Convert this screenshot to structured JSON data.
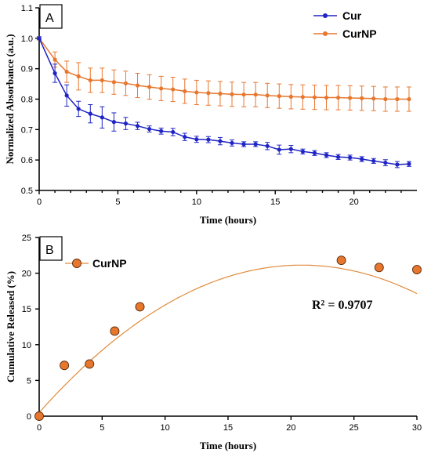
{
  "colors": {
    "cur": "#1f24c4",
    "curnp": "#e8772e",
    "fit": "#e08a3c",
    "axis": "#000000"
  },
  "chart_data": [
    {
      "panel": "A",
      "type": "line",
      "xlabel": "Time (hours)",
      "ylabel": "Normalized Absorbance (a.u.)",
      "xlim": [
        0,
        24
      ],
      "ylim": [
        0.5,
        1.1
      ],
      "xticks": [
        0,
        5,
        10,
        15,
        20
      ],
      "yticks": [
        0.5,
        0.6,
        0.7,
        0.8,
        0.9,
        1.0,
        1.1
      ],
      "xtick_labels": [
        "0",
        "5",
        "10",
        "15",
        "20"
      ],
      "ytick_labels": [
        "0.5",
        "0.6",
        "0.7",
        "0.8",
        "0.9",
        "1.0",
        "1.1"
      ],
      "legend_position": "top-right",
      "series": [
        {
          "name": "Cur",
          "color": "#1f24c4",
          "x": [
            0,
            1,
            1.75,
            2.5,
            3.25,
            4,
            4.75,
            5.5,
            6.25,
            7,
            7.75,
            8.5,
            9.25,
            10,
            10.75,
            11.5,
            12.25,
            13,
            13.75,
            14.5,
            15.25,
            16,
            16.75,
            17.5,
            18.25,
            19,
            19.75,
            20.5,
            21.25,
            22,
            22.75,
            23.5
          ],
          "y": [
            1.0,
            0.885,
            0.812,
            0.768,
            0.752,
            0.74,
            0.725,
            0.72,
            0.712,
            0.702,
            0.695,
            0.692,
            0.676,
            0.668,
            0.667,
            0.662,
            0.656,
            0.652,
            0.652,
            0.646,
            0.634,
            0.636,
            0.628,
            0.623,
            0.616,
            0.61,
            0.608,
            0.603,
            0.597,
            0.591,
            0.585,
            0.587
          ],
          "err": [
            0.005,
            0.03,
            0.035,
            0.025,
            0.03,
            0.035,
            0.03,
            0.02,
            0.012,
            0.01,
            0.01,
            0.012,
            0.012,
            0.01,
            0.01,
            0.012,
            0.01,
            0.008,
            0.008,
            0.012,
            0.015,
            0.012,
            0.008,
            0.008,
            0.008,
            0.008,
            0.008,
            0.008,
            0.008,
            0.01,
            0.01,
            0.008
          ]
        },
        {
          "name": "CurNP",
          "color": "#e8772e",
          "x": [
            0,
            1,
            1.75,
            2.5,
            3.25,
            4,
            4.75,
            5.5,
            6.25,
            7,
            7.75,
            8.5,
            9.25,
            10,
            10.75,
            11.5,
            12.25,
            13,
            13.75,
            14.5,
            15.25,
            16,
            16.75,
            17.5,
            18.25,
            19,
            19.75,
            20.5,
            21.25,
            22,
            22.75,
            23.5
          ],
          "y": [
            1.0,
            0.93,
            0.89,
            0.875,
            0.862,
            0.862,
            0.856,
            0.852,
            0.845,
            0.84,
            0.835,
            0.832,
            0.826,
            0.822,
            0.82,
            0.818,
            0.816,
            0.815,
            0.815,
            0.812,
            0.81,
            0.808,
            0.807,
            0.806,
            0.805,
            0.805,
            0.804,
            0.803,
            0.802,
            0.8,
            0.8,
            0.8
          ],
          "err": [
            0.005,
            0.025,
            0.035,
            0.045,
            0.04,
            0.04,
            0.04,
            0.04,
            0.04,
            0.04,
            0.04,
            0.04,
            0.04,
            0.04,
            0.04,
            0.04,
            0.04,
            0.04,
            0.04,
            0.04,
            0.04,
            0.04,
            0.04,
            0.04,
            0.04,
            0.04,
            0.04,
            0.04,
            0.04,
            0.04,
            0.04,
            0.04
          ]
        }
      ]
    },
    {
      "panel": "B",
      "type": "scatter",
      "xlabel": "Time (hours)",
      "ylabel": "Cumulative  Released (%)",
      "xlim": [
        0,
        30
      ],
      "ylim": [
        0,
        25
      ],
      "xticks": [
        0,
        5,
        10,
        15,
        20,
        25,
        30
      ],
      "yticks": [
        0,
        5,
        10,
        15,
        20,
        25
      ],
      "xtick_labels": [
        "0",
        "5",
        "10",
        "15",
        "20",
        "25",
        "30"
      ],
      "ytick_labels": [
        "0",
        "5",
        "10",
        "15",
        "20",
        "25"
      ],
      "legend_position": "top-left",
      "annotation": "R² = 0.9707",
      "series": [
        {
          "name": "CurNP",
          "color": "#e8772e",
          "x": [
            0,
            2,
            4,
            6,
            8,
            24,
            27,
            30
          ],
          "y": [
            0,
            7.1,
            7.3,
            11.9,
            15.3,
            21.8,
            20.8,
            20.5
          ]
        }
      ],
      "fit": {
        "type": "polynomial",
        "x_range": [
          0,
          30
        ],
        "coefficients": [
          0.5,
          1.98,
          -0.0475
        ]
      }
    }
  ]
}
